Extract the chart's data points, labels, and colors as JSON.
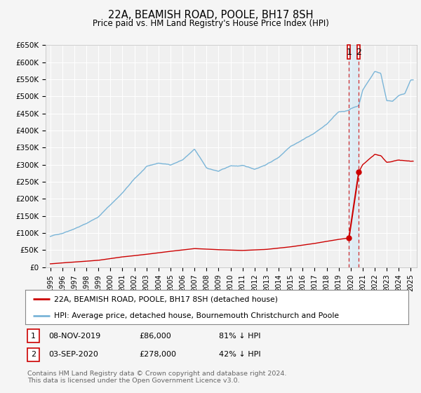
{
  "title": "22A, BEAMISH ROAD, POOLE, BH17 8SH",
  "subtitle": "Price paid vs. HM Land Registry's House Price Index (HPI)",
  "legend_line1": "22A, BEAMISH ROAD, POOLE, BH17 8SH (detached house)",
  "legend_line2": "HPI: Average price, detached house, Bournemouth Christchurch and Poole",
  "table_row1": [
    "1",
    "08-NOV-2019",
    "£86,000",
    "81% ↓ HPI"
  ],
  "table_row2": [
    "2",
    "03-SEP-2020",
    "£278,000",
    "42% ↓ HPI"
  ],
  "footnote": "Contains HM Land Registry data © Crown copyright and database right 2024.\nThis data is licensed under the Open Government Licence v3.0.",
  "hpi_color": "#7ab5d8",
  "price_color": "#cc0000",
  "background_color": "#f5f5f5",
  "plot_bg_color": "#f0f0f0",
  "grid_color": "#ffffff",
  "ylim": [
    0,
    650000
  ],
  "ytick_vals": [
    0,
    50000,
    100000,
    150000,
    200000,
    250000,
    300000,
    350000,
    400000,
    450000,
    500000,
    550000,
    600000,
    650000
  ],
  "xlim_start": 1994.6,
  "xlim_end": 2025.5,
  "sale1_year": 2019.855,
  "sale1_price": 86000,
  "sale2_year": 2020.671,
  "sale2_price": 278000,
  "hpi_pts_x": [
    1995,
    1996,
    1997,
    1998,
    1999,
    2000,
    2001,
    2002,
    2003,
    2004,
    2005,
    2006,
    2007,
    2008,
    2009,
    2010,
    2011,
    2012,
    2013,
    2014,
    2015,
    2016,
    2017,
    2018,
    2019,
    2019.855,
    2020,
    2020.671,
    2021,
    2022,
    2022.5,
    2023,
    2023.5,
    2024,
    2024.5,
    2025
  ],
  "hpi_pts_y": [
    90000,
    100000,
    115000,
    130000,
    150000,
    185000,
    220000,
    260000,
    295000,
    305000,
    300000,
    315000,
    345000,
    290000,
    280000,
    295000,
    295000,
    285000,
    300000,
    320000,
    355000,
    375000,
    395000,
    420000,
    455000,
    460000,
    465000,
    475000,
    520000,
    575000,
    570000,
    490000,
    490000,
    505000,
    510000,
    550000
  ],
  "red_pts_x": [
    1995,
    1997,
    1999,
    2001,
    2003,
    2005,
    2007,
    2009,
    2011,
    2013,
    2015,
    2017,
    2019,
    2019.855
  ],
  "red_pts_y": [
    10000,
    15000,
    20000,
    30000,
    38000,
    47000,
    55000,
    52000,
    50000,
    53000,
    60000,
    70000,
    82000,
    86000
  ],
  "red_pts_x2": [
    2020.671,
    2021,
    2022,
    2022.5,
    2023,
    2023.5,
    2024,
    2024.5,
    2025
  ],
  "red_pts_y2": [
    278000,
    300000,
    330000,
    325000,
    305000,
    308000,
    312000,
    310000,
    308000
  ]
}
